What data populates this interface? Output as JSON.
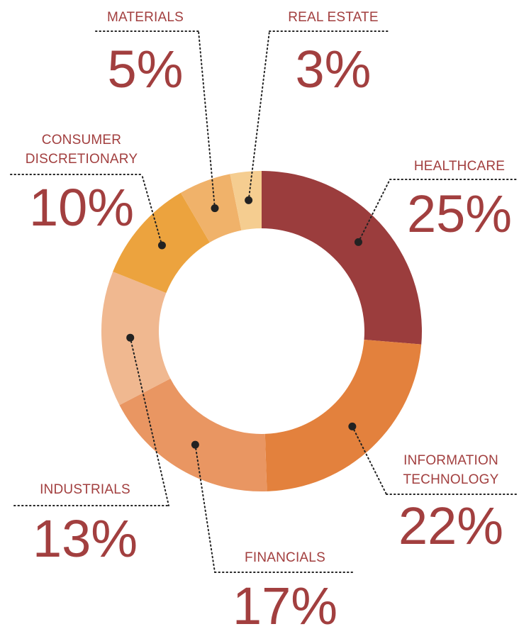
{
  "chart_data": {
    "type": "pie",
    "categories": [
      "HEALTHCARE",
      "INFORMATION TECHNOLOGY",
      "FINANCIALS",
      "INDUSTRIALS",
      "CONSUMER DISCRETIONARY",
      "MATERIALS",
      "REAL ESTATE"
    ],
    "values": [
      25,
      22,
      17,
      13,
      10,
      5,
      3
    ],
    "value_labels": [
      "25%",
      "22%",
      "17%",
      "13%",
      "10%",
      "5%",
      "3%"
    ],
    "colors": [
      "#9b3d3d",
      "#e3813d",
      "#e99662",
      "#f0b890",
      "#eca33e",
      "#f0b26a",
      "#f5cd90"
    ]
  }
}
